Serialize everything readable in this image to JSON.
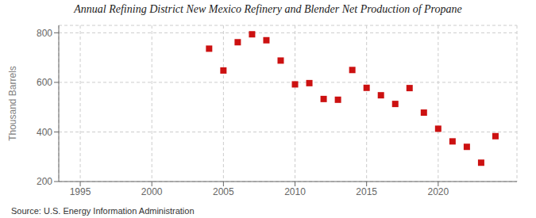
{
  "chart_data": {
    "type": "scatter",
    "title": "Annual Refining District New Mexico Refinery and Blender Net Production of Propane",
    "ylabel": "Thousand Barrels",
    "annotations": [
      "Source: U.S. Energy Information Administration"
    ],
    "x": [
      2004,
      2005,
      2006,
      2007,
      2008,
      2009,
      2010,
      2011,
      2012,
      2013,
      2014,
      2015,
      2016,
      2017,
      2018,
      2019,
      2020,
      2021,
      2022,
      2023,
      2024
    ],
    "values": [
      736,
      648,
      762,
      794,
      770,
      688,
      592,
      597,
      533,
      530,
      650,
      578,
      548,
      513,
      577,
      478,
      413,
      362,
      340,
      276,
      383
    ],
    "color": "#cc1111",
    "marker": "square",
    "xlim": [
      1993.5,
      2025.5
    ],
    "ylim": [
      200,
      830
    ],
    "xticks": [
      1995,
      2000,
      2005,
      2010,
      2015,
      2020
    ],
    "yticks": [
      200,
      400,
      600,
      800
    ],
    "grid": true
  }
}
